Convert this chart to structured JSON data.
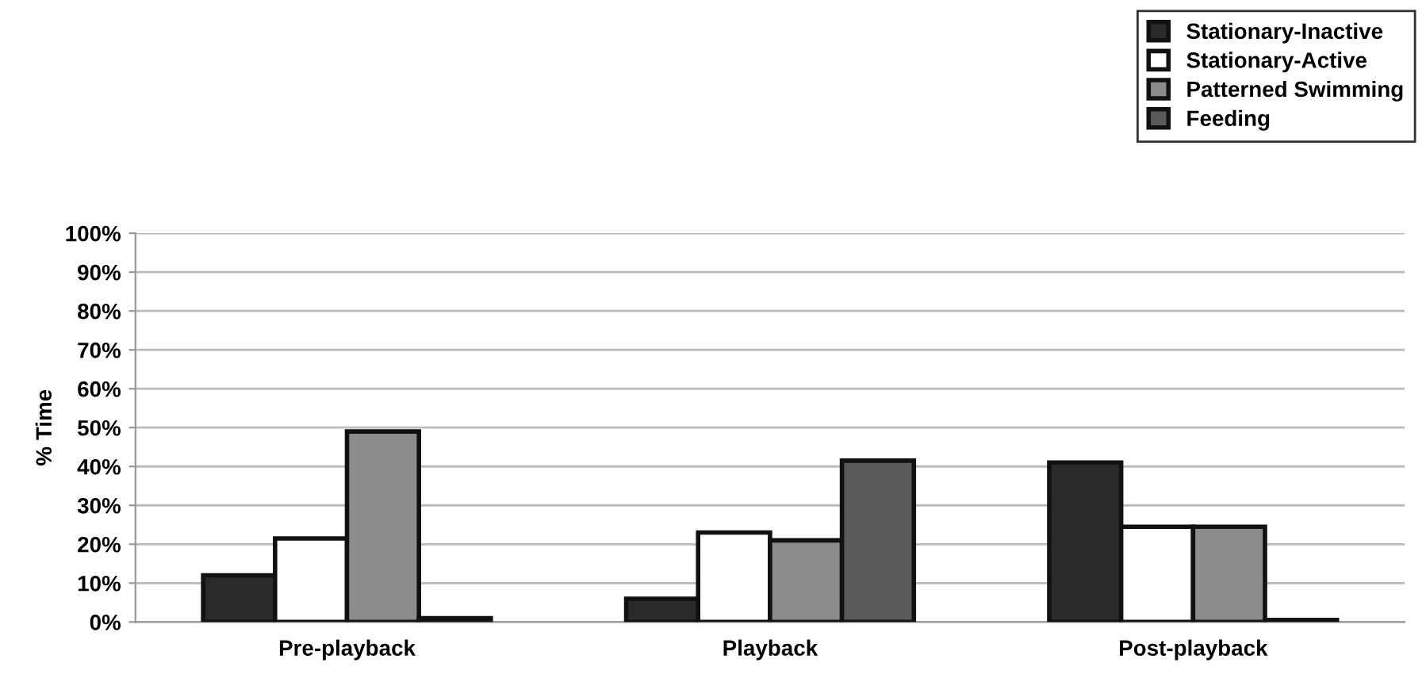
{
  "chart_data": {
    "type": "bar",
    "ylabel": "% Time",
    "categories": [
      "Pre-playback",
      "Playback",
      "Post-playback"
    ],
    "series": [
      {
        "name": "Stationary-Inactive",
        "color": "#2a2a2a",
        "values": [
          12,
          6,
          41
        ]
      },
      {
        "name": "Stationary-Active",
        "color": "#ffffff",
        "values": [
          21.5,
          23,
          24.5
        ]
      },
      {
        "name": "Patterned Swimming",
        "color": "#8c8c8c",
        "values": [
          49,
          21,
          24.5
        ]
      },
      {
        "name": "Feeding",
        "color": "#5a5a5a",
        "values": [
          1,
          41.5,
          0.5
        ]
      }
    ],
    "ylim": [
      0,
      100
    ],
    "yticks": [
      {
        "value": 0,
        "label": "0%"
      },
      {
        "value": 10,
        "label": "10%"
      },
      {
        "value": 20,
        "label": "20%"
      },
      {
        "value": 30,
        "label": "30%"
      },
      {
        "value": 40,
        "label": "40%"
      },
      {
        "value": 50,
        "label": "50%"
      },
      {
        "value": 60,
        "label": "60%"
      },
      {
        "value": 70,
        "label": "70%"
      },
      {
        "value": 80,
        "label": "80%"
      },
      {
        "value": 90,
        "label": "90%"
      },
      {
        "value": 100,
        "label": "100%"
      }
    ],
    "grid": "y",
    "legend": "top right"
  }
}
